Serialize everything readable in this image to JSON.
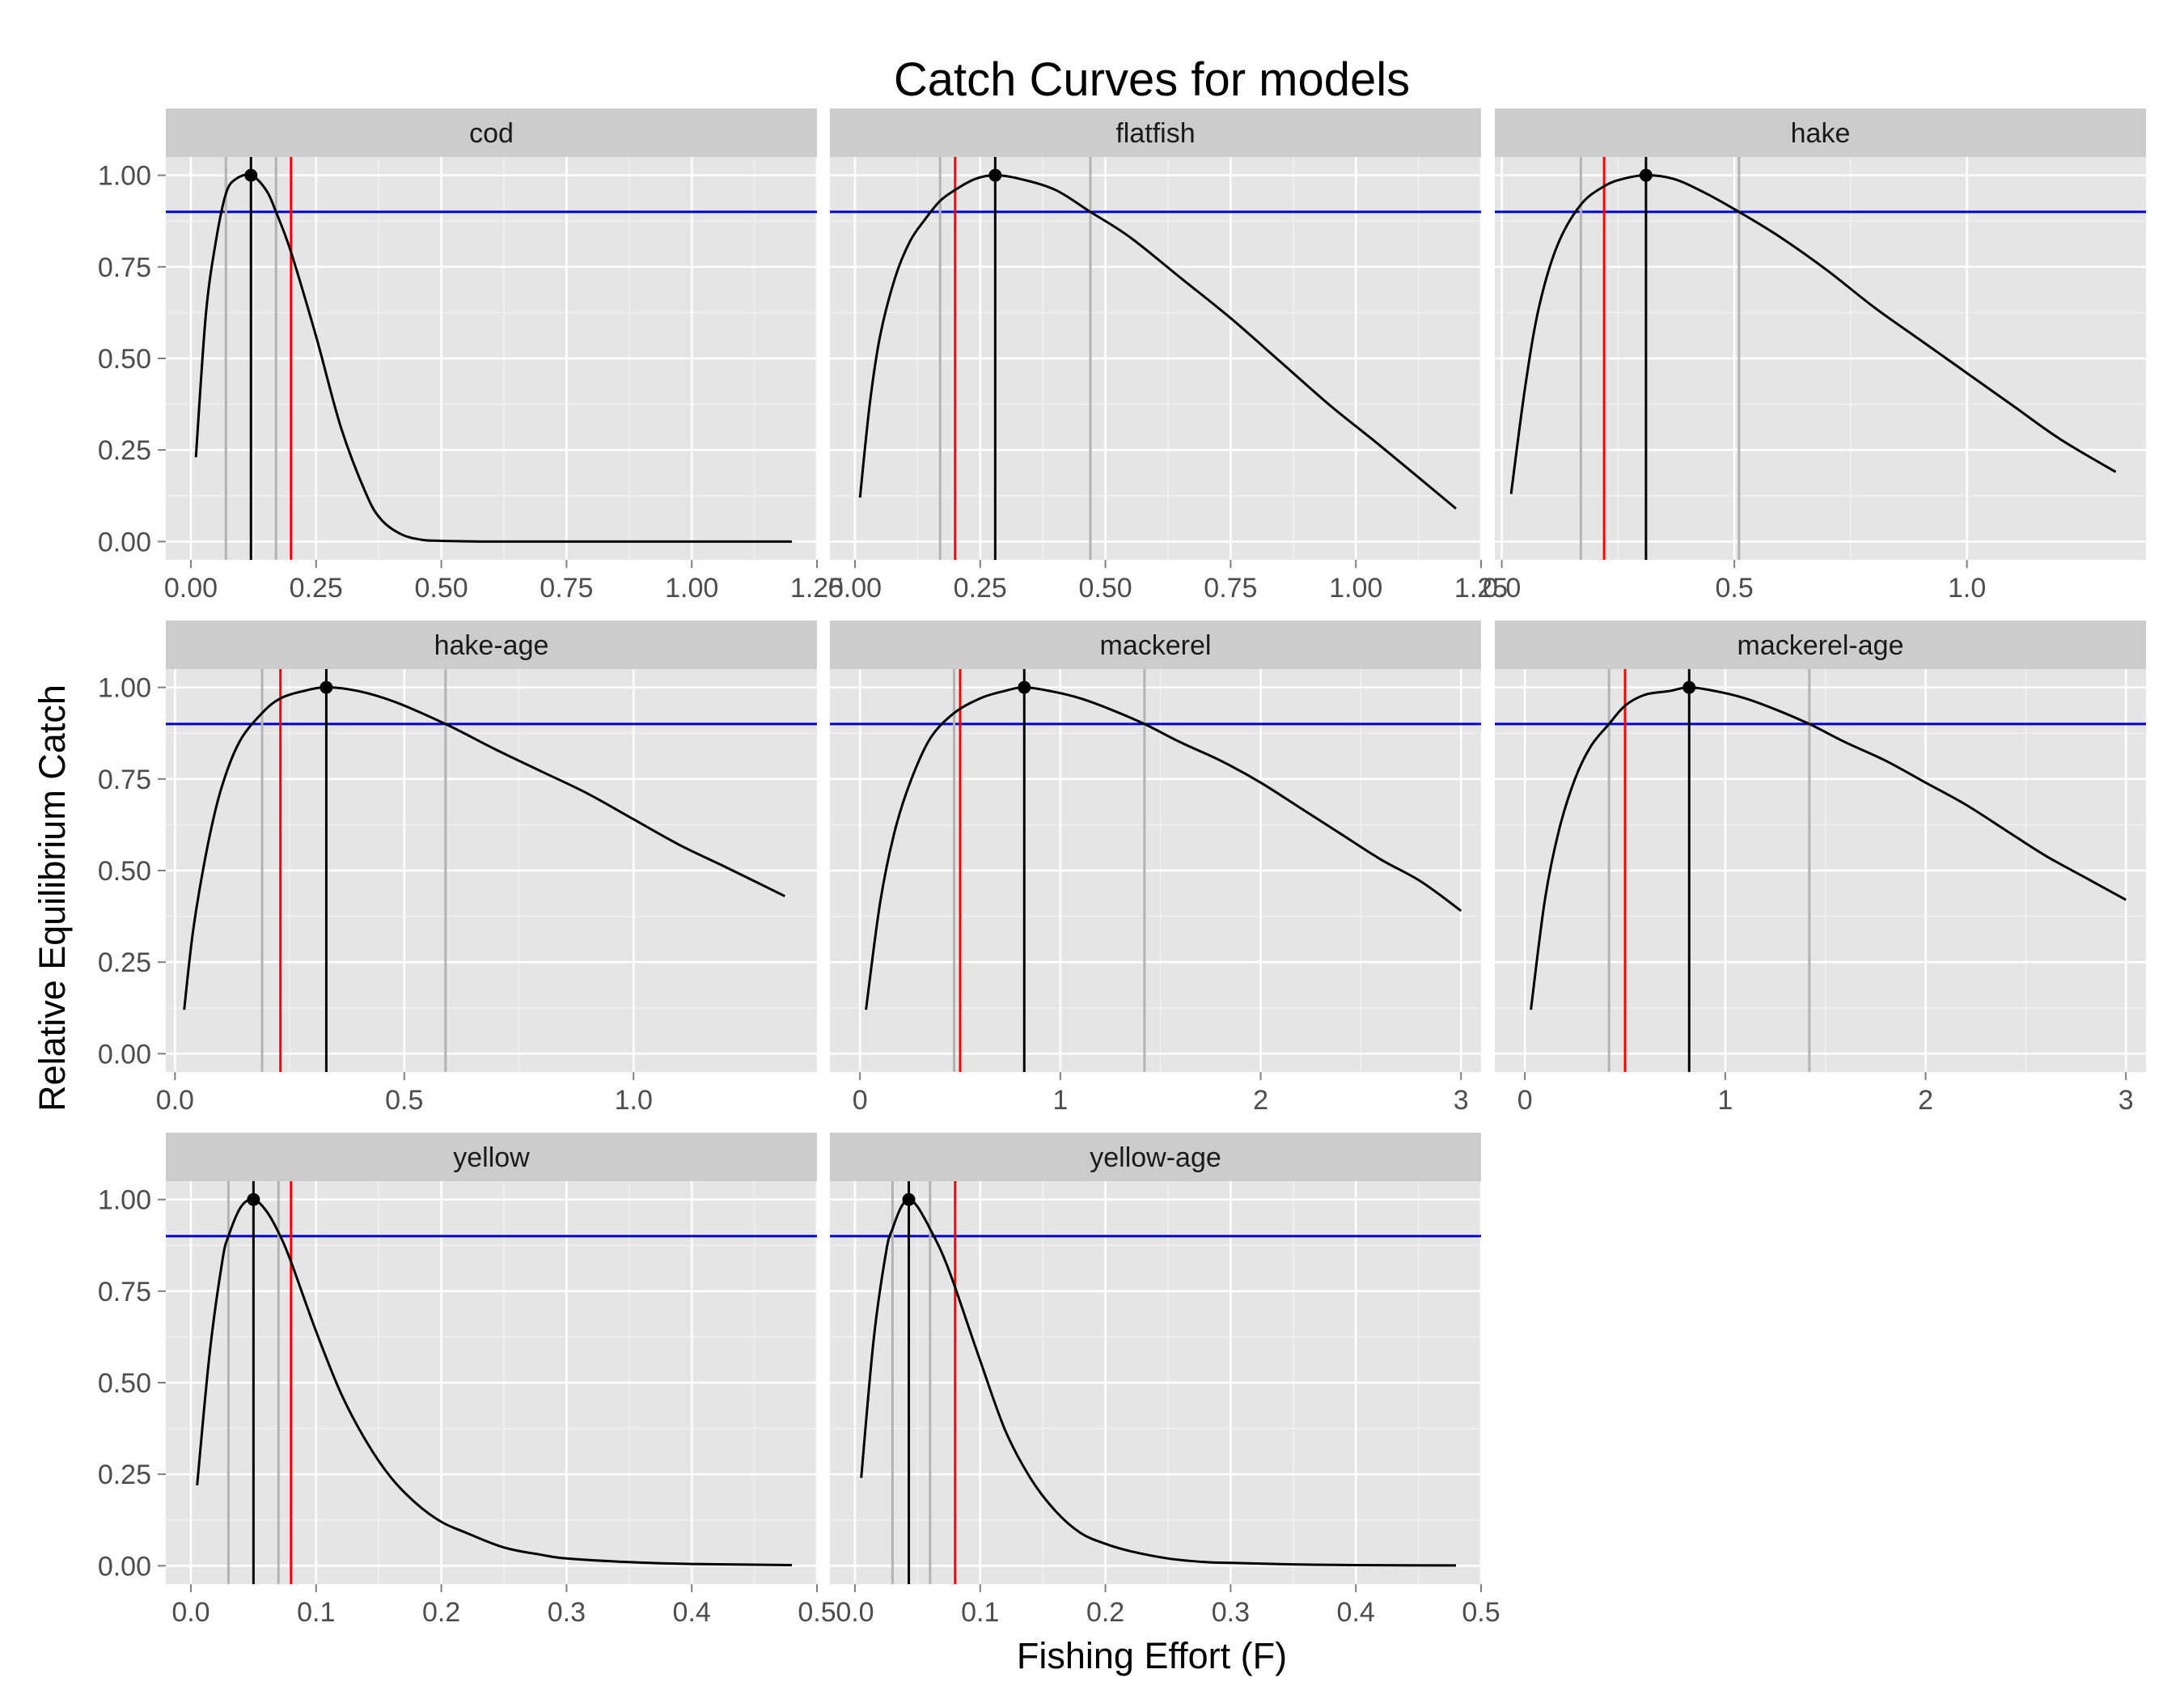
{
  "chart_data": {
    "type": "line",
    "title": "Catch Curves for models",
    "xlabel": "Fishing Effort (F)",
    "ylabel": "Relative Equilibrium Catch",
    "ylim": [
      -0.05,
      1.05
    ],
    "y_ticks": [
      0.0,
      0.25,
      0.5,
      0.75,
      1.0
    ],
    "y_tick_labels": [
      "0.00",
      "0.25",
      "0.50",
      "0.75",
      "1.00"
    ],
    "grid": true,
    "colors": {
      "curve": "#000000",
      "peak_line": "#000000",
      "reference_line": "#ff0000",
      "threshold_line": "#0000cc",
      "bound_lines": "#b3b3b3"
    },
    "threshold": 0.9,
    "panels": [
      {
        "name": "cod",
        "xlim": [
          -0.05,
          1.25
        ],
        "x_ticks": [
          0,
          0.25,
          0.5,
          0.75,
          1.0,
          1.25
        ],
        "x_tick_labels": [
          "0.00",
          "0.25",
          "0.50",
          "0.75",
          "1.00",
          "1.25"
        ],
        "peak_F": 0.12,
        "reference_F": 0.2,
        "bounds_F": [
          0.07,
          0.17
        ],
        "curve": {
          "x": [
            0.01,
            0.03,
            0.05,
            0.07,
            0.09,
            0.12,
            0.15,
            0.17,
            0.2,
            0.25,
            0.3,
            0.35,
            0.38,
            0.42,
            0.46,
            0.5,
            0.6,
            0.8,
            1.0,
            1.2
          ],
          "y": [
            0.23,
            0.62,
            0.82,
            0.95,
            0.99,
            1.0,
            0.96,
            0.9,
            0.79,
            0.56,
            0.31,
            0.13,
            0.06,
            0.02,
            0.005,
            0.002,
            0.0,
            0.0,
            0.0,
            0.0
          ]
        }
      },
      {
        "name": "flatfish",
        "xlim": [
          -0.05,
          1.25
        ],
        "x_ticks": [
          0,
          0.25,
          0.5,
          0.75,
          1.0,
          1.25
        ],
        "x_tick_labels": [
          "0.00",
          "0.25",
          "0.50",
          "0.75",
          "1.00",
          "1.25"
        ],
        "peak_F": 0.28,
        "reference_F": 0.2,
        "bounds_F": [
          0.17,
          0.47
        ],
        "curve": {
          "x": [
            0.01,
            0.03,
            0.05,
            0.08,
            0.11,
            0.14,
            0.17,
            0.2,
            0.24,
            0.28,
            0.33,
            0.4,
            0.47,
            0.55,
            0.65,
            0.75,
            0.85,
            0.95,
            1.05,
            1.2
          ],
          "y": [
            0.12,
            0.38,
            0.56,
            0.72,
            0.82,
            0.88,
            0.93,
            0.96,
            0.99,
            1.0,
            0.99,
            0.96,
            0.9,
            0.83,
            0.72,
            0.61,
            0.49,
            0.37,
            0.26,
            0.09
          ]
        }
      },
      {
        "name": "hake",
        "xlim": [
          -0.015,
          1.385
        ],
        "x_ticks": [
          0,
          0.5,
          1.0
        ],
        "x_tick_labels": [
          "0.0",
          "0.5",
          "1.0"
        ],
        "peak_F": 0.31,
        "reference_F": 0.22,
        "bounds_F": [
          0.17,
          0.51
        ],
        "curve": {
          "x": [
            0.02,
            0.05,
            0.08,
            0.12,
            0.17,
            0.22,
            0.26,
            0.31,
            0.37,
            0.44,
            0.51,
            0.6,
            0.7,
            0.8,
            0.9,
            1.0,
            1.1,
            1.2,
            1.32
          ],
          "y": [
            0.13,
            0.42,
            0.64,
            0.81,
            0.92,
            0.97,
            0.99,
            1.0,
            0.99,
            0.95,
            0.9,
            0.83,
            0.74,
            0.64,
            0.55,
            0.46,
            0.37,
            0.28,
            0.19
          ]
        }
      },
      {
        "name": "hake-age",
        "xlim": [
          -0.02,
          1.4
        ],
        "x_ticks": [
          0,
          0.5,
          1.0
        ],
        "x_tick_labels": [
          "0.0",
          "0.5",
          "1.0"
        ],
        "peak_F": 0.33,
        "reference_F": 0.23,
        "bounds_F": [
          0.19,
          0.59
        ],
        "curve": {
          "x": [
            0.02,
            0.04,
            0.07,
            0.1,
            0.14,
            0.19,
            0.23,
            0.28,
            0.33,
            0.4,
            0.48,
            0.59,
            0.7,
            0.8,
            0.9,
            1.0,
            1.1,
            1.2,
            1.33
          ],
          "y": [
            0.12,
            0.34,
            0.56,
            0.72,
            0.85,
            0.93,
            0.97,
            0.99,
            1.0,
            0.99,
            0.96,
            0.9,
            0.83,
            0.77,
            0.71,
            0.64,
            0.57,
            0.51,
            0.43
          ]
        }
      },
      {
        "name": "mackerel",
        "xlim": [
          -0.15,
          3.1
        ],
        "x_ticks": [
          0,
          1,
          2,
          3
        ],
        "x_tick_labels": [
          "0",
          "1",
          "2",
          "3"
        ],
        "peak_F": 0.82,
        "reference_F": 0.5,
        "bounds_F": [
          0.47,
          1.42
        ],
        "curve": {
          "x": [
            0.03,
            0.1,
            0.17,
            0.25,
            0.35,
            0.47,
            0.6,
            0.72,
            0.82,
            0.95,
            1.1,
            1.25,
            1.42,
            1.6,
            1.8,
            2.0,
            2.2,
            2.4,
            2.6,
            2.8,
            3.0
          ],
          "y": [
            0.12,
            0.41,
            0.6,
            0.74,
            0.86,
            0.93,
            0.97,
            0.99,
            1.0,
            0.99,
            0.97,
            0.94,
            0.9,
            0.85,
            0.8,
            0.74,
            0.67,
            0.6,
            0.53,
            0.47,
            0.39
          ]
        }
      },
      {
        "name": "mackerel-age",
        "xlim": [
          -0.15,
          3.1
        ],
        "x_ticks": [
          0,
          1,
          2,
          3
        ],
        "x_tick_labels": [
          "0",
          "1",
          "2",
          "3"
        ],
        "peak_F": 0.82,
        "reference_F": 0.5,
        "bounds_F": [
          0.42,
          1.42
        ],
        "curve": {
          "x": [
            0.03,
            0.1,
            0.17,
            0.25,
            0.33,
            0.42,
            0.5,
            0.6,
            0.72,
            0.82,
            0.95,
            1.1,
            1.25,
            1.42,
            1.6,
            1.8,
            2.0,
            2.2,
            2.4,
            2.6,
            2.8,
            3.0
          ],
          "y": [
            0.12,
            0.42,
            0.61,
            0.75,
            0.84,
            0.9,
            0.95,
            0.98,
            0.99,
            1.0,
            0.99,
            0.97,
            0.94,
            0.9,
            0.85,
            0.8,
            0.74,
            0.68,
            0.61,
            0.54,
            0.48,
            0.42
          ]
        }
      },
      {
        "name": "yellow",
        "xlim": [
          -0.02,
          0.5
        ],
        "x_ticks": [
          0,
          0.1,
          0.2,
          0.3,
          0.4,
          0.5
        ],
        "x_tick_labels": [
          "0.0",
          "0.1",
          "0.2",
          "0.3",
          "0.4",
          "0.5"
        ],
        "peak_F": 0.05,
        "reference_F": 0.08,
        "bounds_F": [
          0.03,
          0.07
        ],
        "curve": {
          "x": [
            0.005,
            0.015,
            0.025,
            0.03,
            0.04,
            0.05,
            0.06,
            0.07,
            0.08,
            0.1,
            0.12,
            0.14,
            0.16,
            0.18,
            0.2,
            0.22,
            0.25,
            0.28,
            0.3,
            0.35,
            0.4,
            0.48
          ],
          "y": [
            0.22,
            0.58,
            0.83,
            0.9,
            0.98,
            1.0,
            0.97,
            0.91,
            0.83,
            0.64,
            0.47,
            0.34,
            0.24,
            0.17,
            0.12,
            0.09,
            0.05,
            0.03,
            0.02,
            0.01,
            0.005,
            0.002
          ]
        }
      },
      {
        "name": "yellow-age",
        "xlim": [
          -0.02,
          0.5
        ],
        "x_ticks": [
          0,
          0.1,
          0.2,
          0.3,
          0.4,
          0.5
        ],
        "x_tick_labels": [
          "0.0",
          "0.1",
          "0.2",
          "0.3",
          "0.4",
          "0.5"
        ],
        "peak_F": 0.043,
        "reference_F": 0.08,
        "bounds_F": [
          0.03,
          0.06
        ],
        "curve": {
          "x": [
            0.005,
            0.015,
            0.025,
            0.03,
            0.037,
            0.043,
            0.05,
            0.06,
            0.07,
            0.08,
            0.1,
            0.12,
            0.14,
            0.16,
            0.18,
            0.2,
            0.22,
            0.25,
            0.28,
            0.3,
            0.35,
            0.4,
            0.48
          ],
          "y": [
            0.24,
            0.62,
            0.86,
            0.92,
            0.98,
            1.0,
            0.98,
            0.92,
            0.85,
            0.76,
            0.56,
            0.37,
            0.24,
            0.15,
            0.09,
            0.06,
            0.04,
            0.02,
            0.01,
            0.008,
            0.004,
            0.002,
            0.001
          ]
        }
      }
    ]
  }
}
